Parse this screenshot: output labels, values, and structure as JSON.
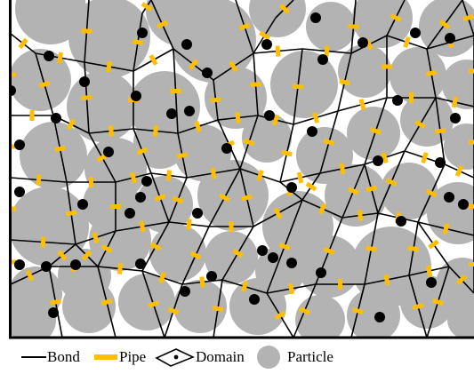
{
  "legend": {
    "items": [
      {
        "key": "bond",
        "label": "Bond"
      },
      {
        "key": "pipe",
        "label": "Pipe"
      },
      {
        "key": "domain",
        "label": "Domain"
      },
      {
        "key": "particle",
        "label": "Particle"
      }
    ]
  },
  "colors": {
    "particle": "#b3b3b3",
    "pipe": "#ffbf00",
    "bond": "#000000",
    "node": "#000000",
    "frame": "#000000",
    "background": "#ffffff"
  },
  "icons": [
    "bond-line-icon",
    "pipe-swatch-icon",
    "domain-polygon-icon",
    "particle-circle-icon"
  ]
}
